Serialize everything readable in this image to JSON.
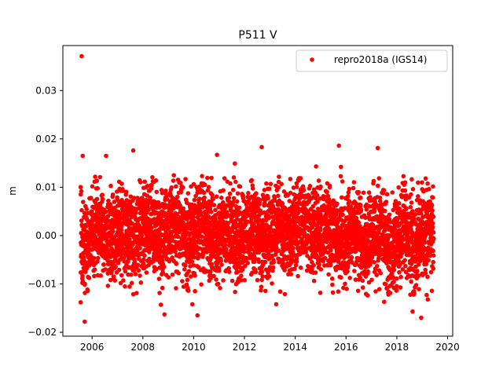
{
  "chart_data": {
    "type": "scatter",
    "title": "P511 V",
    "xlabel": "",
    "ylabel": "m",
    "xlim": [
      2004.85,
      2020.2
    ],
    "ylim": [
      -0.0208,
      0.0393
    ],
    "xticks": [
      2006,
      2008,
      2010,
      2012,
      2014,
      2016,
      2018,
      2020
    ],
    "xtick_labels": [
      "2006",
      "2008",
      "2010",
      "2012",
      "2014",
      "2016",
      "2018",
      "2020"
    ],
    "yticks": [
      -0.02,
      -0.01,
      0.0,
      0.01,
      0.02,
      0.03
    ],
    "ytick_labels": [
      "−0.02",
      "−0.01",
      "0.00",
      "0.01",
      "0.02",
      "0.03"
    ],
    "grid": false,
    "legend": {
      "placement": "top-right",
      "entries": [
        "repro2018a (IGS14)"
      ]
    },
    "series": [
      {
        "name": "repro2018a (IGS14)",
        "color": "#ff0000",
        "marker": "circle",
        "time_range": [
          2005.55,
          2019.45
        ],
        "typical_spread": 0.0045,
        "x": [
          2005.59,
          2005.55,
          2005.63,
          2005.71,
          2005.62,
          2005.74,
          2006.55,
          2007.62,
          2008.71,
          2008.85,
          2009.95,
          2010.15,
          2010.92,
          2011.62,
          2012.68,
          2013.25,
          2014.82,
          2015.72,
          2015.8,
          2017.25,
          2017.5,
          2018.62,
          2018.96,
          2019.22
        ],
        "y": [
          0.0371,
          -0.0138,
          0.0165,
          -0.0178,
          -0.0098,
          -0.0075,
          0.0165,
          0.0176,
          -0.0143,
          -0.0163,
          -0.0142,
          -0.0165,
          0.0167,
          0.0149,
          0.0183,
          -0.0142,
          0.0143,
          0.0186,
          0.0142,
          0.0181,
          -0.0137,
          -0.0157,
          -0.017,
          -0.0132
        ]
      }
    ]
  }
}
